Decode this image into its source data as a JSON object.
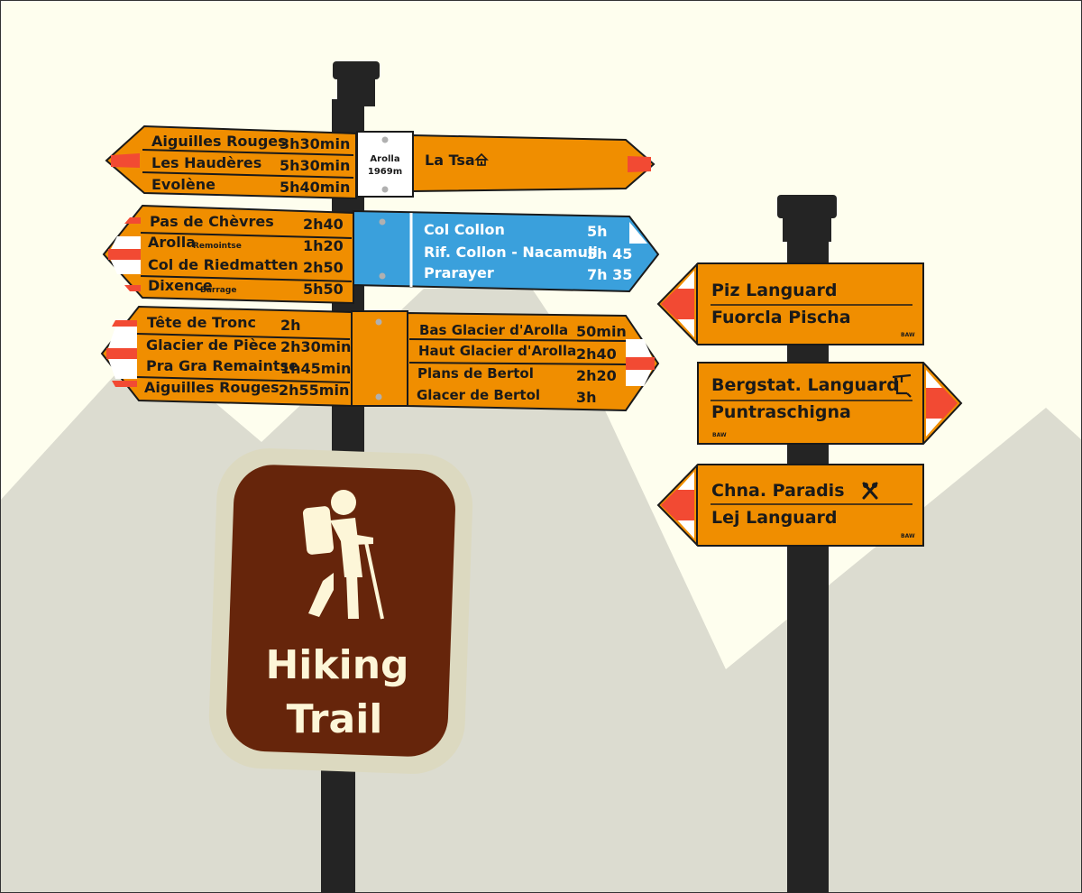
{
  "colors": {
    "sky": "#fefeee",
    "mountains": "#dcdcd0",
    "pole": "#242424",
    "sign_orange": "#f08e00",
    "sign_blue": "#3aa0dc",
    "tip_red": "#f24a33",
    "trail_brown": "#66250b",
    "trail_frame": "#dcd9c0",
    "trail_text": "#fdf6d8"
  },
  "left_post": {
    "left_top": {
      "rows": [
        {
          "name": "Aiguilles Rouges",
          "time": "3h30min"
        },
        {
          "name": "Les Haudères",
          "time": "5h30min"
        },
        {
          "name": "Evolène",
          "time": "5h40min"
        }
      ]
    },
    "location": {
      "name": "Arolla",
      "altitude": "1969m"
    },
    "right_top": {
      "name": "La Tsa",
      "icon": "hut-icon"
    },
    "left_middle": {
      "rows": [
        {
          "name": "Pas de Chèvres",
          "sub": "",
          "time": "2h40"
        },
        {
          "name": "Arolla",
          "sub": "Remointse",
          "time": "1h20"
        },
        {
          "name": "Col de Riedmatten",
          "sub": "",
          "time": "2h50"
        },
        {
          "name": "Dixence",
          "sub": "Barrage",
          "time": "5h50"
        }
      ]
    },
    "right_middle_blue": {
      "rows": [
        {
          "name": "Col Collon",
          "time": "5h"
        },
        {
          "name": "Rif. Collon - Nacamuli",
          "time": "5h 45"
        },
        {
          "name": "Prarayer",
          "time": "7h 35"
        }
      ]
    },
    "left_bottom": {
      "rows": [
        {
          "name": "Tête de Tronc",
          "time": "2h"
        },
        {
          "name": "Glacier de Pièce",
          "time": "2h30min"
        },
        {
          "name": "Pra Gra Remaintse",
          "time": "1h45min"
        },
        {
          "name": "Aiguilles Rouges",
          "time": "2h55min"
        }
      ]
    },
    "right_bottom": {
      "rows": [
        {
          "name": "Bas Glacier d'Arolla",
          "time": "50min"
        },
        {
          "name": "Haut Glacier d'Arolla",
          "time": "2h40"
        },
        {
          "name": "Plans de Bertol",
          "time": "2h20"
        },
        {
          "name": "Glacer de Bertol",
          "time": "3h"
        }
      ]
    }
  },
  "hiking_sign": {
    "icon": "hiker-icon",
    "line1": "Hiking",
    "line2": "Trail"
  },
  "right_post": {
    "sign1": {
      "line1": "Piz Languard",
      "line2": "Fuorcla Pischa",
      "mark": "BAW",
      "direction": "left"
    },
    "sign2": {
      "line1": "Bergstat. Languard",
      "line2": "Puntraschigna",
      "mark": "BAW",
      "icon": "chairlift-icon",
      "direction": "right"
    },
    "sign3": {
      "line1": "Chna. Paradis",
      "line2": "Lej Languard",
      "mark": "BAW",
      "icon": "restaurant-icon",
      "direction": "left"
    }
  }
}
